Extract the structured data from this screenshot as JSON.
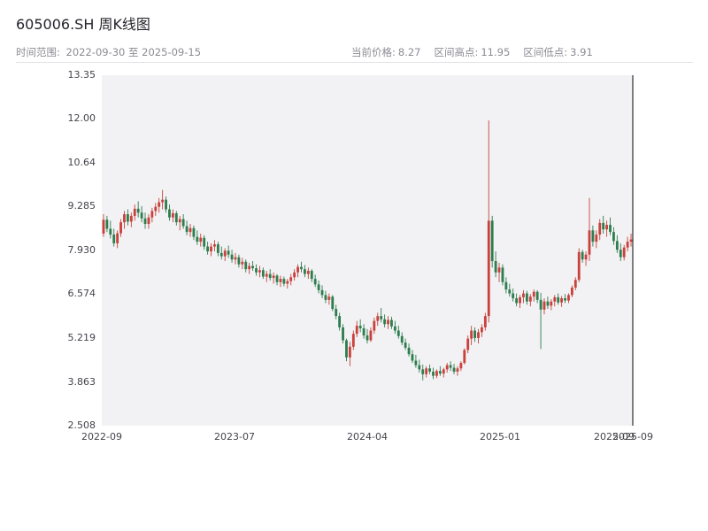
{
  "page": {
    "title": "605006.SH 周K线图"
  },
  "header": {
    "range_label": "时间范围:",
    "range_value": "2022-09-30 至 2025-09-15",
    "stats": [
      {
        "label": "当前价格:",
        "value": "8.27"
      },
      {
        "label": "区间高点:",
        "value": "11.95"
      },
      {
        "label": "区间低点:",
        "value": "3.91"
      }
    ]
  },
  "chart_data": {
    "type": "candlestick",
    "title": "605006.SH 周K线图",
    "symbol": "605006.SH",
    "interval": "weekly",
    "xlabel": "",
    "ylabel": "",
    "grid": false,
    "legend": "none",
    "ylim": [
      2.508,
      13.35
    ],
    "current_price": 8.27,
    "range_high": 11.95,
    "range_low": 3.91,
    "colors": {
      "up": "#c9413c",
      "down": "#2e7d4f",
      "plot_bg": "#f2f2f4",
      "spine": "#2f2f35"
    },
    "y_ticks": [
      {
        "label": "13.35",
        "value": 13.35
      },
      {
        "label": "12.00",
        "value": 12.0
      },
      {
        "label": "10.64",
        "value": 10.64
      },
      {
        "label": "9.285",
        "value": 9.285
      },
      {
        "label": "7.930",
        "value": 7.93
      },
      {
        "label": "6.574",
        "value": 6.574
      },
      {
        "label": "5.219",
        "value": 5.219
      },
      {
        "label": "3.863",
        "value": 3.863
      },
      {
        "label": "2.508",
        "value": 2.508
      }
    ],
    "x_ticks": [
      {
        "label": "2022-09",
        "pos": 0.0
      },
      {
        "label": "2023-07",
        "pos": 0.25
      },
      {
        "label": "2024-04",
        "pos": 0.5
      },
      {
        "label": "2025-01",
        "pos": 0.75
      },
      {
        "label": "2025-09",
        "pos": 0.965
      },
      {
        "label": "2025-09",
        "pos": 1.0
      }
    ],
    "columns": [
      "date",
      "open",
      "high",
      "low",
      "close"
    ],
    "candles": [
      [
        "2022-09-30",
        8.45,
        9.05,
        8.35,
        8.88
      ],
      [
        "2022-10-07",
        8.88,
        9.0,
        8.5,
        8.6
      ],
      [
        "2022-10-14",
        8.6,
        8.85,
        8.3,
        8.42
      ],
      [
        "2022-10-21",
        8.42,
        8.6,
        8.05,
        8.15
      ],
      [
        "2022-10-28",
        8.15,
        8.55,
        8.0,
        8.46
      ],
      [
        "2022-11-04",
        8.46,
        8.9,
        8.35,
        8.8
      ],
      [
        "2022-11-11",
        8.8,
        9.15,
        8.6,
        9.05
      ],
      [
        "2022-11-18",
        9.05,
        9.2,
        8.7,
        8.82
      ],
      [
        "2022-11-25",
        8.82,
        9.1,
        8.65,
        9.0
      ],
      [
        "2022-12-02",
        9.0,
        9.35,
        8.85,
        9.22
      ],
      [
        "2022-12-09",
        9.22,
        9.45,
        8.95,
        9.1
      ],
      [
        "2022-12-16",
        9.1,
        9.3,
        8.8,
        8.92
      ],
      [
        "2022-12-23",
        8.92,
        9.1,
        8.6,
        8.75
      ],
      [
        "2022-12-30",
        8.75,
        9.05,
        8.6,
        8.95
      ],
      [
        "2023-01-06",
        8.95,
        9.25,
        8.8,
        9.15
      ],
      [
        "2023-01-13",
        9.15,
        9.4,
        9.0,
        9.28
      ],
      [
        "2023-01-20",
        9.28,
        9.55,
        9.1,
        9.42
      ],
      [
        "2023-01-27",
        9.42,
        9.8,
        9.2,
        9.5
      ],
      [
        "2023-02-03",
        9.5,
        9.6,
        9.1,
        9.2
      ],
      [
        "2023-02-10",
        9.2,
        9.35,
        8.85,
        8.95
      ],
      [
        "2023-02-17",
        8.95,
        9.2,
        8.8,
        9.08
      ],
      [
        "2023-02-24",
        9.08,
        9.15,
        8.7,
        8.8
      ],
      [
        "2023-03-03",
        8.8,
        9.0,
        8.55,
        8.9
      ],
      [
        "2023-03-10",
        8.9,
        9.05,
        8.6,
        8.68
      ],
      [
        "2023-03-17",
        8.68,
        8.85,
        8.4,
        8.5
      ],
      [
        "2023-03-24",
        8.5,
        8.75,
        8.35,
        8.62
      ],
      [
        "2023-03-31",
        8.62,
        8.7,
        8.25,
        8.35
      ],
      [
        "2023-04-07",
        8.35,
        8.55,
        8.1,
        8.2
      ],
      [
        "2023-04-14",
        8.2,
        8.45,
        8.05,
        8.32
      ],
      [
        "2023-04-21",
        8.32,
        8.4,
        7.95,
        8.05
      ],
      [
        "2023-04-28",
        8.05,
        8.2,
        7.8,
        7.9
      ],
      [
        "2023-05-05",
        7.9,
        8.15,
        7.75,
        8.05
      ],
      [
        "2023-05-12",
        8.05,
        8.25,
        7.9,
        8.12
      ],
      [
        "2023-05-19",
        8.12,
        8.2,
        7.75,
        7.85
      ],
      [
        "2023-05-26",
        7.85,
        8.05,
        7.65,
        7.75
      ],
      [
        "2023-06-02",
        7.75,
        8.0,
        7.6,
        7.92
      ],
      [
        "2023-06-09",
        7.92,
        8.08,
        7.7,
        7.8
      ],
      [
        "2023-06-16",
        7.8,
        7.95,
        7.55,
        7.65
      ],
      [
        "2023-06-23",
        7.65,
        7.85,
        7.5,
        7.72
      ],
      [
        "2023-06-30",
        7.72,
        7.8,
        7.4,
        7.5
      ],
      [
        "2023-07-07",
        7.5,
        7.7,
        7.35,
        7.58
      ],
      [
        "2023-07-14",
        7.58,
        7.65,
        7.25,
        7.35
      ],
      [
        "2023-07-21",
        7.35,
        7.55,
        7.2,
        7.45
      ],
      [
        "2023-07-28",
        7.45,
        7.6,
        7.3,
        7.38
      ],
      [
        "2023-08-04",
        7.38,
        7.5,
        7.15,
        7.25
      ],
      [
        "2023-08-11",
        7.25,
        7.45,
        7.1,
        7.32
      ],
      [
        "2023-08-18",
        7.32,
        7.4,
        7.05,
        7.12
      ],
      [
        "2023-08-25",
        7.12,
        7.3,
        6.95,
        7.2
      ],
      [
        "2023-09-01",
        7.2,
        7.35,
        7.0,
        7.08
      ],
      [
        "2023-09-08",
        7.08,
        7.25,
        6.9,
        7.15
      ],
      [
        "2023-09-15",
        7.15,
        7.2,
        6.85,
        6.95
      ],
      [
        "2023-09-22",
        6.95,
        7.15,
        6.8,
        7.05
      ],
      [
        "2023-09-29",
        7.05,
        7.12,
        6.82,
        6.9
      ],
      [
        "2023-10-06",
        6.9,
        7.05,
        6.75,
        6.98
      ],
      [
        "2023-10-13",
        6.98,
        7.2,
        6.85,
        7.1
      ],
      [
        "2023-10-20",
        7.1,
        7.35,
        7.0,
        7.25
      ],
      [
        "2023-10-27",
        7.25,
        7.5,
        7.1,
        7.42
      ],
      [
        "2023-11-03",
        7.42,
        7.58,
        7.25,
        7.35
      ],
      [
        "2023-11-10",
        7.35,
        7.48,
        7.1,
        7.2
      ],
      [
        "2023-11-17",
        7.2,
        7.4,
        7.05,
        7.3
      ],
      [
        "2023-11-24",
        7.3,
        7.35,
        6.95,
        7.05
      ],
      [
        "2023-12-01",
        7.05,
        7.18,
        6.8,
        6.88
      ],
      [
        "2023-12-08",
        6.88,
        7.0,
        6.6,
        6.7
      ],
      [
        "2023-12-15",
        6.7,
        6.85,
        6.45,
        6.55
      ],
      [
        "2023-12-22",
        6.55,
        6.68,
        6.3,
        6.4
      ],
      [
        "2023-12-29",
        6.4,
        6.6,
        6.25,
        6.5
      ],
      [
        "2024-01-05",
        6.5,
        6.55,
        6.05,
        6.12
      ],
      [
        "2024-01-12",
        6.12,
        6.25,
        5.8,
        5.9
      ],
      [
        "2024-01-19",
        5.9,
        6.0,
        5.45,
        5.55
      ],
      [
        "2024-01-26",
        5.55,
        5.65,
        5.05,
        5.15
      ],
      [
        "2024-02-02",
        5.15,
        5.2,
        4.5,
        4.62
      ],
      [
        "2024-02-09",
        4.62,
        5.1,
        4.35,
        4.95
      ],
      [
        "2024-02-16",
        4.95,
        5.45,
        4.85,
        5.35
      ],
      [
        "2024-02-23",
        5.35,
        5.75,
        5.25,
        5.6
      ],
      [
        "2024-03-01",
        5.6,
        5.8,
        5.4,
        5.52
      ],
      [
        "2024-03-08",
        5.52,
        5.65,
        5.2,
        5.3
      ],
      [
        "2024-03-15",
        5.3,
        5.5,
        5.05,
        5.15
      ],
      [
        "2024-03-22",
        5.15,
        5.55,
        5.1,
        5.45
      ],
      [
        "2024-03-29",
        5.45,
        5.85,
        5.35,
        5.75
      ],
      [
        "2024-04-05",
        5.75,
        6.0,
        5.6,
        5.9
      ],
      [
        "2024-04-12",
        5.9,
        6.15,
        5.7,
        5.8
      ],
      [
        "2024-04-19",
        5.8,
        5.95,
        5.55,
        5.65
      ],
      [
        "2024-04-26",
        5.65,
        5.9,
        5.5,
        5.78
      ],
      [
        "2024-05-03",
        5.78,
        5.88,
        5.5,
        5.58
      ],
      [
        "2024-05-10",
        5.58,
        5.75,
        5.35,
        5.45
      ],
      [
        "2024-05-17",
        5.45,
        5.6,
        5.2,
        5.28
      ],
      [
        "2024-05-24",
        5.28,
        5.4,
        5.0,
        5.08
      ],
      [
        "2024-05-31",
        5.08,
        5.2,
        4.85,
        4.92
      ],
      [
        "2024-06-07",
        4.92,
        5.05,
        4.65,
        4.72
      ],
      [
        "2024-06-14",
        4.72,
        4.85,
        4.45,
        4.52
      ],
      [
        "2024-06-21",
        4.52,
        4.7,
        4.3,
        4.38
      ],
      [
        "2024-06-28",
        4.38,
        4.55,
        4.15,
        4.25
      ],
      [
        "2024-07-05",
        4.25,
        4.4,
        3.91,
        4.1
      ],
      [
        "2024-07-12",
        4.1,
        4.35,
        4.0,
        4.28
      ],
      [
        "2024-07-19",
        4.28,
        4.4,
        4.1,
        4.18
      ],
      [
        "2024-07-26",
        4.18,
        4.3,
        3.95,
        4.05
      ],
      [
        "2024-08-02",
        4.05,
        4.25,
        3.98,
        4.2
      ],
      [
        "2024-08-09",
        4.2,
        4.35,
        4.05,
        4.12
      ],
      [
        "2024-08-16",
        4.12,
        4.3,
        4.0,
        4.25
      ],
      [
        "2024-08-23",
        4.25,
        4.45,
        4.15,
        4.38
      ],
      [
        "2024-08-30",
        4.38,
        4.5,
        4.2,
        4.3
      ],
      [
        "2024-09-06",
        4.3,
        4.42,
        4.1,
        4.18
      ],
      [
        "2024-09-13",
        4.18,
        4.35,
        4.05,
        4.28
      ],
      [
        "2024-09-20",
        4.28,
        4.5,
        4.2,
        4.45
      ],
      [
        "2024-09-27",
        4.45,
        4.9,
        4.4,
        4.85
      ],
      [
        "2024-10-04",
        4.85,
        5.3,
        4.75,
        5.2
      ],
      [
        "2024-10-11",
        5.2,
        5.6,
        5.0,
        5.45
      ],
      [
        "2024-10-18",
        5.45,
        5.55,
        5.1,
        5.22
      ],
      [
        "2024-10-25",
        5.22,
        5.5,
        5.05,
        5.4
      ],
      [
        "2024-11-01",
        5.4,
        5.65,
        5.25,
        5.55
      ],
      [
        "2024-11-08",
        5.55,
        6.0,
        5.45,
        5.9
      ],
      [
        "2024-11-15",
        5.9,
        11.95,
        5.7,
        8.85
      ],
      [
        "2024-11-22",
        8.85,
        9.0,
        7.4,
        7.6
      ],
      [
        "2024-11-29",
        7.6,
        7.9,
        7.1,
        7.25
      ],
      [
        "2024-12-06",
        7.25,
        7.55,
        6.95,
        7.4
      ],
      [
        "2024-12-13",
        7.4,
        7.5,
        6.85,
        6.95
      ],
      [
        "2024-12-20",
        6.95,
        7.1,
        6.6,
        6.72
      ],
      [
        "2024-12-27",
        6.72,
        6.9,
        6.5,
        6.6
      ],
      [
        "2025-01-03",
        6.6,
        6.75,
        6.35,
        6.45
      ],
      [
        "2025-01-10",
        6.45,
        6.6,
        6.2,
        6.3
      ],
      [
        "2025-01-17",
        6.3,
        6.55,
        6.15,
        6.48
      ],
      [
        "2025-01-24",
        6.48,
        6.7,
        6.3,
        6.6
      ],
      [
        "2025-02-07",
        6.6,
        6.68,
        6.25,
        6.35
      ],
      [
        "2025-02-14",
        6.35,
        6.58,
        6.2,
        6.5
      ],
      [
        "2025-02-21",
        6.5,
        6.72,
        6.35,
        6.65
      ],
      [
        "2025-02-28",
        6.65,
        6.7,
        6.3,
        6.4
      ],
      [
        "2025-03-07",
        6.4,
        6.62,
        4.88,
        6.1
      ],
      [
        "2025-03-14",
        6.1,
        6.45,
        5.95,
        6.35
      ],
      [
        "2025-03-21",
        6.35,
        6.5,
        6.12,
        6.22
      ],
      [
        "2025-03-28",
        6.22,
        6.42,
        6.08,
        6.35
      ],
      [
        "2025-04-04",
        6.35,
        6.55,
        6.2,
        6.48
      ],
      [
        "2025-04-11",
        6.48,
        6.6,
        6.25,
        6.32
      ],
      [
        "2025-04-18",
        6.32,
        6.52,
        6.18,
        6.45
      ],
      [
        "2025-04-25",
        6.45,
        6.58,
        6.3,
        6.38
      ],
      [
        "2025-05-09",
        6.38,
        6.6,
        6.3,
        6.55
      ],
      [
        "2025-05-16",
        6.55,
        6.85,
        6.48,
        6.78
      ],
      [
        "2025-05-23",
        6.78,
        7.1,
        6.7,
        7.02
      ],
      [
        "2025-05-30",
        7.02,
        8.0,
        6.95,
        7.88
      ],
      [
        "2025-06-06",
        7.88,
        7.95,
        7.55,
        7.65
      ],
      [
        "2025-06-13",
        7.65,
        7.9,
        7.45,
        7.8
      ],
      [
        "2025-06-20",
        7.8,
        9.55,
        7.6,
        8.55
      ],
      [
        "2025-06-27",
        8.55,
        8.7,
        8.05,
        8.2
      ],
      [
        "2025-07-04",
        8.2,
        8.55,
        8.0,
        8.42
      ],
      [
        "2025-07-11",
        8.42,
        8.9,
        8.25,
        8.78
      ],
      [
        "2025-07-18",
        8.78,
        9.0,
        8.45,
        8.58
      ],
      [
        "2025-07-25",
        8.58,
        8.85,
        8.35,
        8.72
      ],
      [
        "2025-08-01",
        8.72,
        8.95,
        8.4,
        8.5
      ],
      [
        "2025-08-08",
        8.5,
        8.65,
        8.1,
        8.22
      ],
      [
        "2025-08-15",
        8.22,
        8.4,
        7.85,
        7.95
      ],
      [
        "2025-08-22",
        7.95,
        8.15,
        7.6,
        7.72
      ],
      [
        "2025-08-29",
        7.72,
        8.1,
        7.62,
        8.02
      ],
      [
        "2025-09-05",
        8.02,
        8.35,
        7.9,
        8.2
      ],
      [
        "2025-09-15",
        8.2,
        8.45,
        8.05,
        8.27
      ]
    ]
  }
}
